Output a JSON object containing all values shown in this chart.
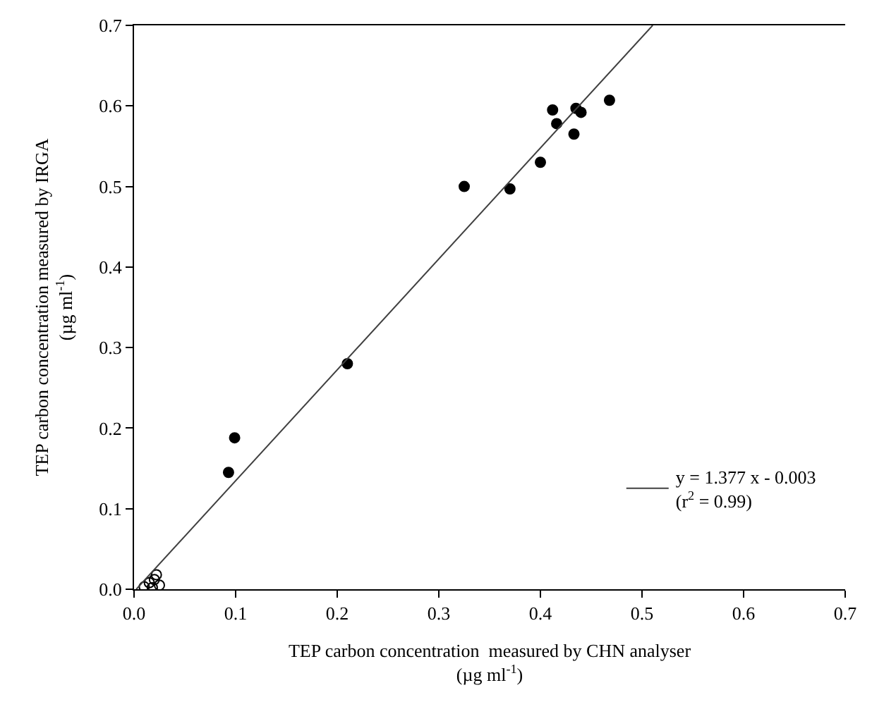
{
  "chart_data": {
    "type": "scatter",
    "xlabel": "TEP carbon concentration  measured by CHN analyser\n(µg ml$^{-1}$)",
    "ylabel": "TEP carbon concentration measured by IRGA\n(µg ml$^{-1}$)",
    "xlim": [
      0,
      0.7
    ],
    "ylim": [
      0,
      0.7
    ],
    "xticks": [
      {
        "value": 0,
        "label": "0.0"
      },
      0.1,
      0.2,
      0.3,
      0.4,
      0.5,
      0.6,
      0.7
    ],
    "yticks": [
      {
        "value": 0,
        "label": "0.0"
      },
      0.1,
      0.2,
      0.3,
      0.4,
      0.5,
      0.6,
      0.7
    ],
    "legend": "bottom right",
    "series": [
      {
        "marker": "circle",
        "color": "#000000",
        "x": [
          0.093,
          0.099,
          0.21,
          0.325,
          0.37,
          0.4,
          0.412,
          0.416,
          0.433,
          0.435,
          0.44,
          0.468
        ],
        "values": [
          0.145,
          0.188,
          0.28,
          0.5,
          0.497,
          0.53,
          0.595,
          0.578,
          0.565,
          0.597,
          0.592,
          0.607
        ]
      },
      {
        "marker": "open circle",
        "color": "#000000",
        "x": [
          0.01,
          0.015,
          0.018,
          0.02,
          0.022,
          0.025
        ],
        "values": [
          0.003,
          0.008,
          0.002,
          0.012,
          0.018,
          0.005
        ]
      },
      {
        "type": "line",
        "marker": "none",
        "name": "y = 1.377 x - 0.003\n(r$^{2}$ = 0.99)",
        "color": "#404040",
        "x": [
          0.0022,
          0.5105
        ],
        "values": [
          0.0,
          0.7
        ]
      }
    ]
  }
}
